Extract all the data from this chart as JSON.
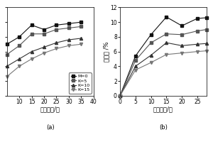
{
  "chart_a": {
    "xlabel": "吸水时间/天",
    "label": "(a)",
    "x": [
      5,
      10,
      15,
      20,
      25,
      30,
      35
    ],
    "series": {
      "M=0": [
        3.5,
        4.0,
        4.8,
        4.5,
        4.8,
        4.9,
        5.0
      ],
      "K=5": [
        2.8,
        3.4,
        4.2,
        4.2,
        4.5,
        4.6,
        4.7
      ],
      "K=10": [
        2.0,
        2.5,
        3.0,
        3.3,
        3.6,
        3.8,
        3.9
      ],
      "K=15": [
        1.3,
        2.0,
        2.5,
        2.9,
        3.2,
        3.4,
        3.5
      ]
    },
    "xlim": [
      5,
      40
    ],
    "xticks": [
      10,
      15,
      20,
      25,
      30,
      35,
      40
    ],
    "ylim": [
      0,
      6
    ],
    "yticks_show": false
  },
  "chart_b": {
    "xlabel": "吸水时间/天",
    "ylabel": "吸水率 /%",
    "label": "(b)",
    "x": [
      0,
      5,
      10,
      15,
      20,
      25,
      28
    ],
    "series": {
      "M=0": [
        0,
        5.4,
        8.3,
        10.7,
        9.5,
        10.5,
        10.6
      ],
      "K=5": [
        0,
        4.8,
        7.2,
        8.4,
        8.3,
        8.8,
        9.0
      ],
      "K=10": [
        0,
        4.0,
        5.5,
        7.2,
        6.8,
        7.0,
        7.1
      ],
      "K=15": [
        0,
        3.5,
        4.5,
        5.6,
        5.8,
        6.0,
        6.1
      ]
    },
    "xlim": [
      0,
      28
    ],
    "xticks": [
      0,
      5,
      10,
      15,
      20,
      25
    ],
    "ylim": [
      0,
      12
    ],
    "yticks": [
      0,
      2,
      4,
      6,
      8,
      10,
      12
    ]
  },
  "legend_labels": [
    "M=0",
    "K=5",
    "K=10",
    "K=15"
  ],
  "line_colors": [
    "#111111",
    "#555555",
    "#333333",
    "#777777"
  ],
  "markers": [
    "s",
    "s",
    "^",
    "v"
  ],
  "markersize": 3,
  "linewidth": 0.8,
  "font_size": 6,
  "tick_font_size": 5.5,
  "bg_color": "#ffffff"
}
